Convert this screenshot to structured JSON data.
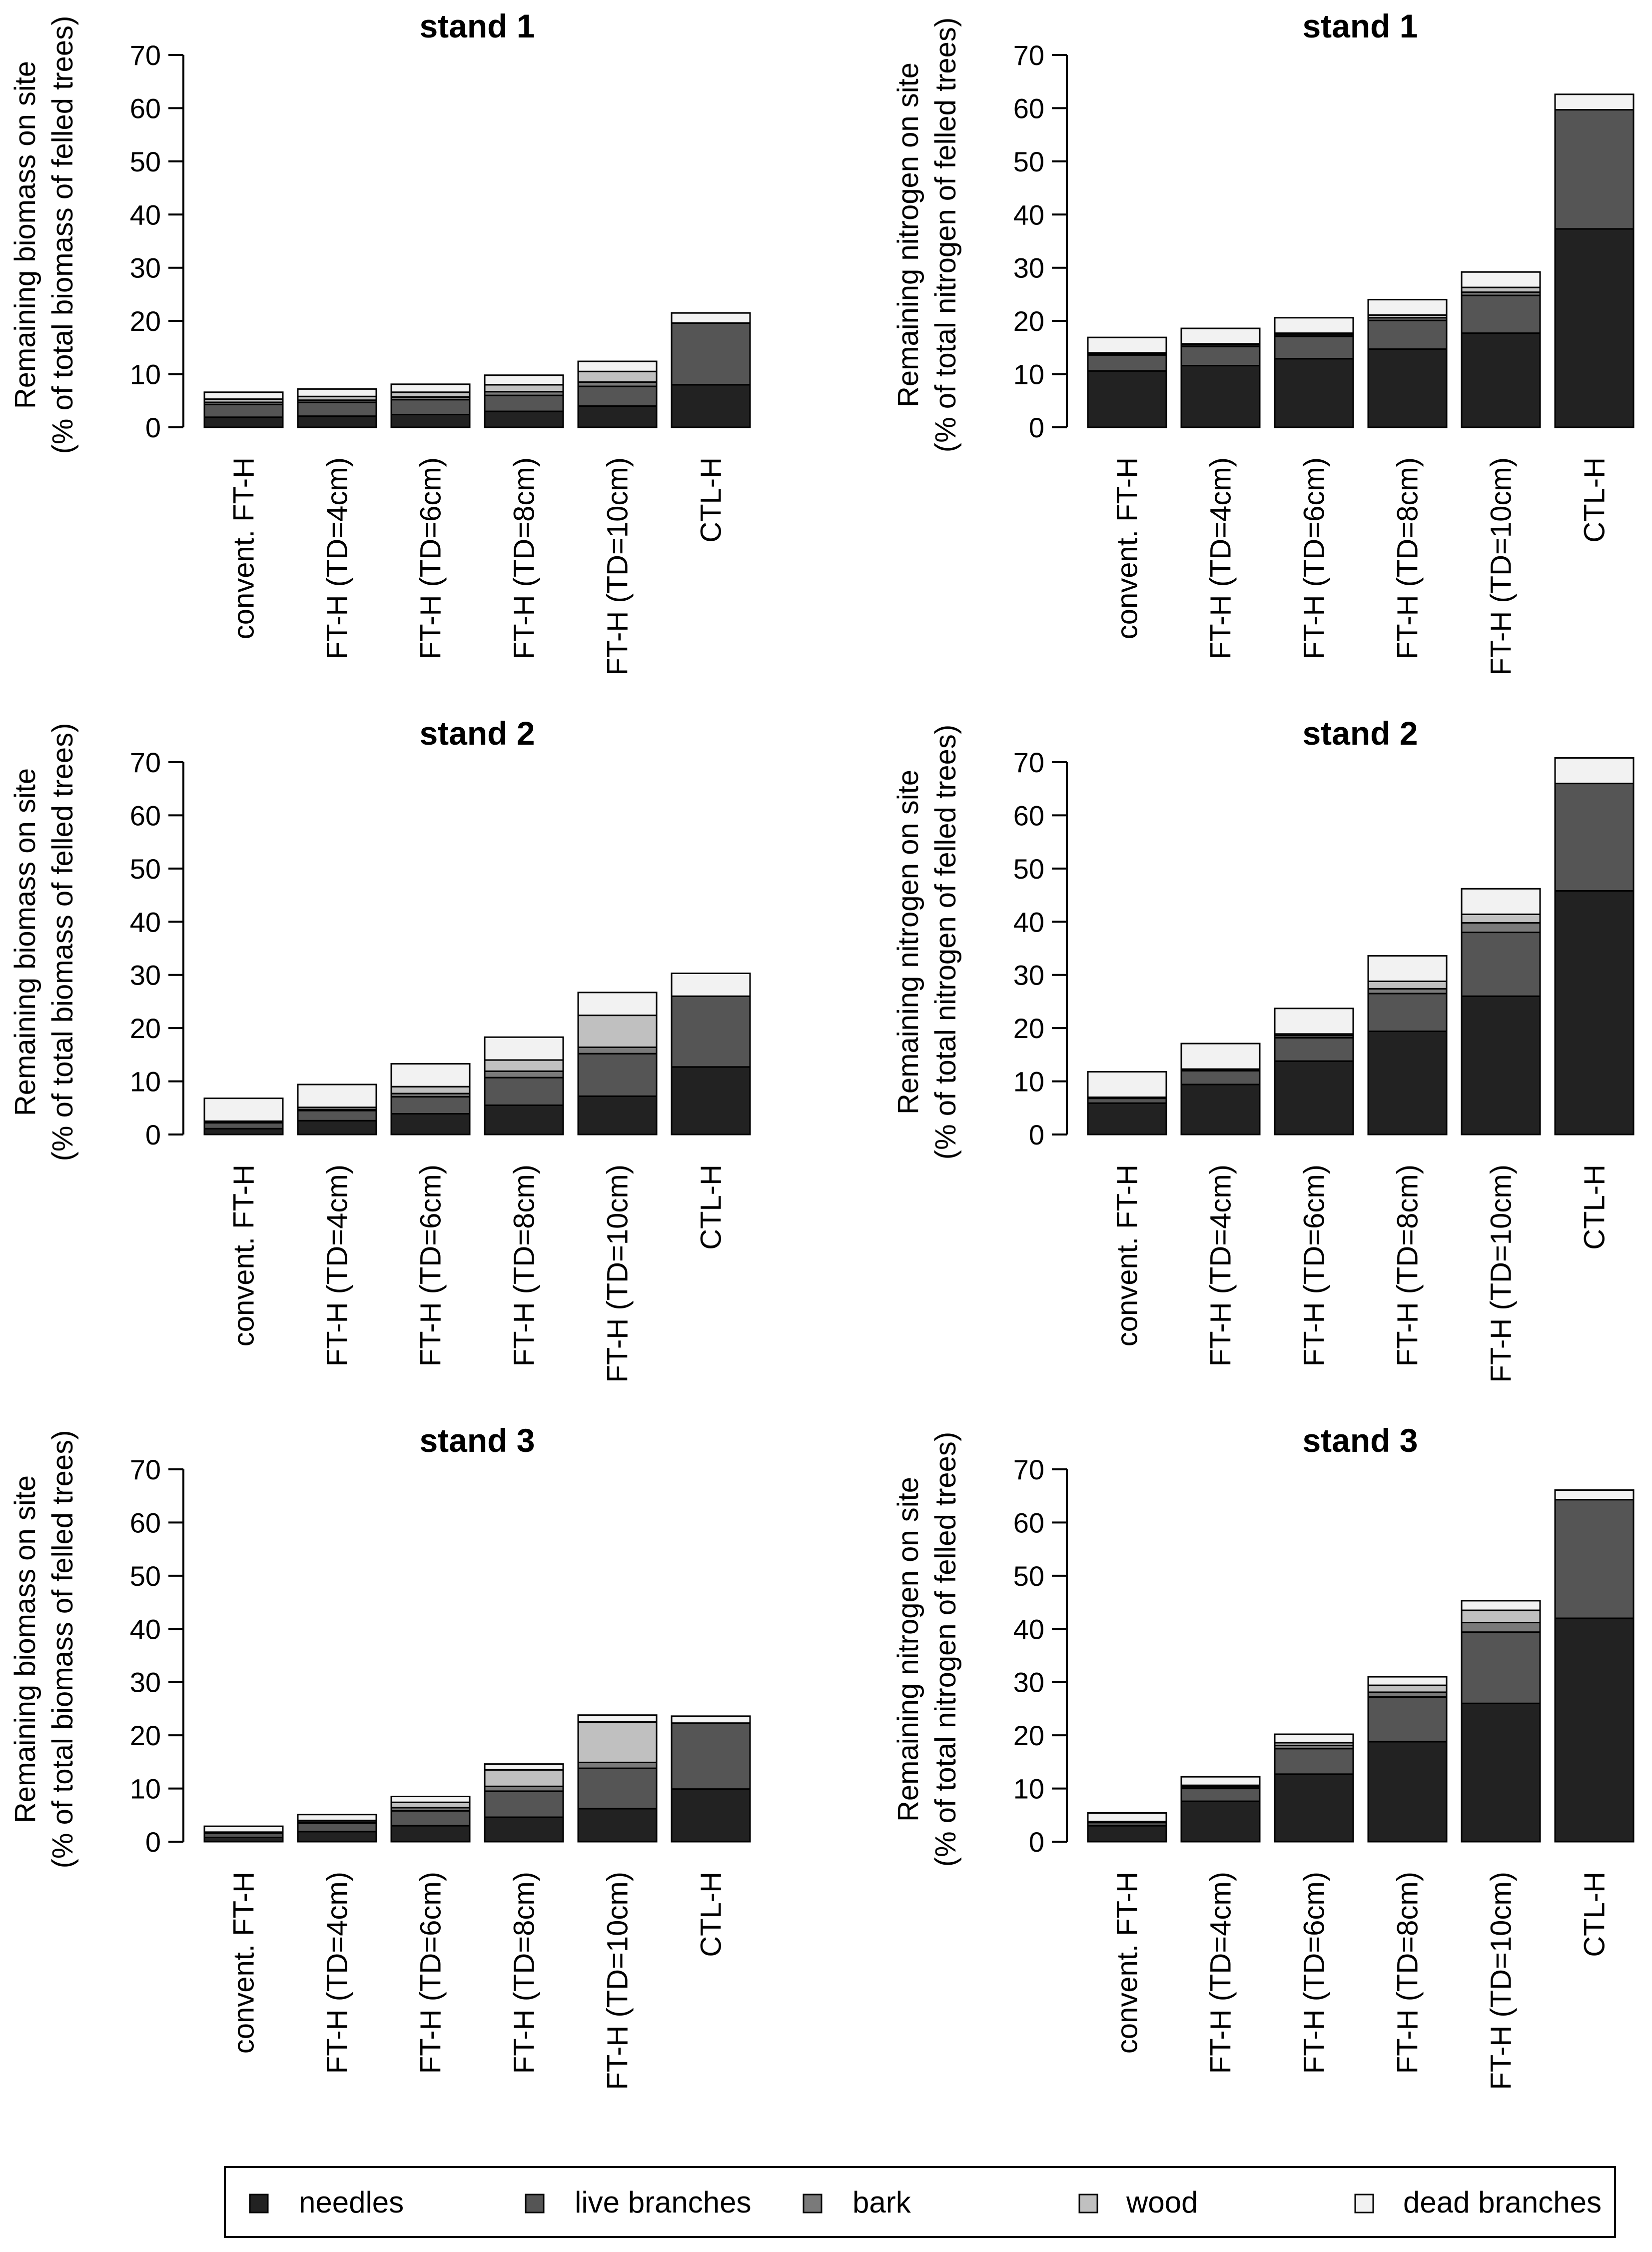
{
  "colors": {
    "needles": "#222222",
    "live_branches": "#555555",
    "bark": "#7a7a7a",
    "wood": "#c0c0c0",
    "dead_branches": "#f2f2f2"
  },
  "legend": [
    {
      "key": "needles",
      "label": "needles"
    },
    {
      "key": "live_branches",
      "label": "live branches"
    },
    {
      "key": "bark",
      "label": "bark"
    },
    {
      "key": "wood",
      "label": "wood"
    },
    {
      "key": "dead_branches",
      "label": "dead branches"
    }
  ],
  "chart_data": [
    {
      "id": "stand1-biomass",
      "type": "bar",
      "stacked": true,
      "title": "stand 1",
      "ylabel_line1": "Remaining biomass on site",
      "ylabel_line2": "(% of total biomass of felled trees)",
      "ylim": [
        0,
        70
      ],
      "yticks": [
        0,
        10,
        20,
        30,
        40,
        50,
        60,
        70
      ],
      "categories": [
        "convent. FT-H",
        "FT-H (TD=4cm)",
        "FT-H (TD=6cm)",
        "FT-H (TD=8cm)",
        "FT-H (TD=10cm)",
        "CTL-H"
      ],
      "series": [
        {
          "name": "needles",
          "values": [
            1.9,
            2.1,
            2.4,
            3.0,
            4.0,
            8.0
          ]
        },
        {
          "name": "live branches",
          "values": [
            2.4,
            2.6,
            2.8,
            3.0,
            3.7,
            11.6
          ]
        },
        {
          "name": "bark",
          "values": [
            0.4,
            0.4,
            0.5,
            0.7,
            0.8,
            0.0
          ]
        },
        {
          "name": "wood",
          "values": [
            0.6,
            0.7,
            0.9,
            1.3,
            2.0,
            0.0
          ]
        },
        {
          "name": "dead branches",
          "values": [
            1.3,
            1.4,
            1.5,
            1.8,
            1.9,
            1.9
          ]
        }
      ]
    },
    {
      "id": "stand1-nitrogen",
      "type": "bar",
      "stacked": true,
      "title": "stand 1",
      "ylabel_line1": "Remaining nitrogen on site",
      "ylabel_line2": "(% of total nitrogen of felled trees)",
      "ylim": [
        0,
        70
      ],
      "yticks": [
        0,
        10,
        20,
        30,
        40,
        50,
        60,
        70
      ],
      "categories": [
        "convent. FT-H",
        "FT-H (TD=4cm)",
        "FT-H (TD=6cm)",
        "FT-H (TD=8cm)",
        "FT-H (TD=10cm)",
        "CTL-H"
      ],
      "series": [
        {
          "name": "needles",
          "values": [
            10.6,
            11.6,
            12.9,
            14.7,
            17.7,
            37.3
          ]
        },
        {
          "name": "live branches",
          "values": [
            3.0,
            3.6,
            4.2,
            5.4,
            7.1,
            22.4
          ]
        },
        {
          "name": "bark",
          "values": [
            0.2,
            0.3,
            0.3,
            0.5,
            0.6,
            0.0
          ]
        },
        {
          "name": "wood",
          "values": [
            0.2,
            0.2,
            0.3,
            0.5,
            0.9,
            0.0
          ]
        },
        {
          "name": "dead branches",
          "values": [
            2.9,
            2.9,
            2.9,
            2.9,
            2.9,
            2.9
          ]
        }
      ]
    },
    {
      "id": "stand2-biomass",
      "type": "bar",
      "stacked": true,
      "title": "stand 2",
      "ylabel_line1": "Remaining biomass on site",
      "ylabel_line2": "(% of total biomass of felled trees)",
      "ylim": [
        0,
        70
      ],
      "yticks": [
        0,
        10,
        20,
        30,
        40,
        50,
        60,
        70
      ],
      "categories": [
        "convent. FT-H",
        "FT-H (TD=4cm)",
        "FT-H (TD=6cm)",
        "FT-H (TD=8cm)",
        "FT-H (TD=10cm)",
        "CTL-H"
      ],
      "series": [
        {
          "name": "needles",
          "values": [
            1.1,
            2.6,
            3.9,
            5.5,
            7.2,
            12.7
          ]
        },
        {
          "name": "live branches",
          "values": [
            1.1,
            1.9,
            3.2,
            5.2,
            8.0,
            13.3
          ]
        },
        {
          "name": "bark",
          "values": [
            0.1,
            0.2,
            0.6,
            1.2,
            1.2,
            0.0
          ]
        },
        {
          "name": "wood",
          "values": [
            0.2,
            0.4,
            1.3,
            2.1,
            6.0,
            0.0
          ]
        },
        {
          "name": "dead branches",
          "values": [
            4.3,
            4.3,
            4.3,
            4.3,
            4.3,
            4.3
          ]
        }
      ]
    },
    {
      "id": "stand2-nitrogen",
      "type": "bar",
      "stacked": true,
      "title": "stand 2",
      "ylabel_line1": "Remaining nitrogen on site",
      "ylabel_line2": "(% of total nitrogen of felled trees)",
      "ylim": [
        0,
        70
      ],
      "yticks": [
        0,
        10,
        20,
        30,
        40,
        50,
        60,
        70
      ],
      "categories": [
        "convent. FT-H",
        "FT-H (TD=4cm)",
        "FT-H (TD=6cm)",
        "FT-H (TD=8cm)",
        "FT-H (TD=10cm)",
        "CTL-H"
      ],
      "series": [
        {
          "name": "needles",
          "values": [
            5.9,
            9.4,
            13.8,
            19.4,
            26.0,
            45.8
          ]
        },
        {
          "name": "live branches",
          "values": [
            0.9,
            2.6,
            4.4,
            7.1,
            12.0,
            20.2
          ]
        },
        {
          "name": "bark",
          "values": [
            0.1,
            0.2,
            0.4,
            0.9,
            1.8,
            0.0
          ]
        },
        {
          "name": "wood",
          "values": [
            0.1,
            0.1,
            0.3,
            1.4,
            1.6,
            0.0
          ]
        },
        {
          "name": "dead branches",
          "values": [
            4.8,
            4.8,
            4.8,
            4.8,
            4.8,
            4.8
          ]
        }
      ]
    },
    {
      "id": "stand3-biomass",
      "type": "bar",
      "stacked": true,
      "title": "stand 3",
      "ylabel_line1": "Remaining biomass on site",
      "ylabel_line2": "(% of total biomass of felled trees)",
      "ylim": [
        0,
        70
      ],
      "yticks": [
        0,
        10,
        20,
        30,
        40,
        50,
        60,
        70
      ],
      "categories": [
        "convent. FT-H",
        "FT-H (TD=4cm)",
        "FT-H (TD=6cm)",
        "FT-H (TD=8cm)",
        "FT-H (TD=10cm)",
        "CTL-H"
      ],
      "series": [
        {
          "name": "needles",
          "values": [
            0.8,
            1.9,
            3.0,
            4.6,
            6.2,
            9.9
          ]
        },
        {
          "name": "live branches",
          "values": [
            0.8,
            1.6,
            2.8,
            4.9,
            7.6,
            12.4
          ]
        },
        {
          "name": "bark",
          "values": [
            0.1,
            0.2,
            0.6,
            0.9,
            1.1,
            0.0
          ]
        },
        {
          "name": "wood",
          "values": [
            0.1,
            0.3,
            1.0,
            3.1,
            7.6,
            0.0
          ]
        },
        {
          "name": "dead branches",
          "values": [
            1.1,
            1.1,
            1.1,
            1.1,
            1.3,
            1.3
          ]
        }
      ]
    },
    {
      "id": "stand3-nitrogen",
      "type": "bar",
      "stacked": true,
      "title": "stand 3",
      "ylabel_line1": "Remaining nitrogen on site",
      "ylabel_line2": "(% of total nitrogen of felled trees)",
      "ylim": [
        0,
        70
      ],
      "yticks": [
        0,
        10,
        20,
        30,
        40,
        50,
        60,
        70
      ],
      "categories": [
        "convent. FT-H",
        "FT-H (TD=4cm)",
        "FT-H (TD=6cm)",
        "FT-H (TD=8cm)",
        "FT-H (TD=10cm)",
        "CTL-H"
      ],
      "series": [
        {
          "name": "needles",
          "values": [
            3.0,
            7.6,
            12.7,
            18.8,
            26.0,
            42.0
          ]
        },
        {
          "name": "live branches",
          "values": [
            0.6,
            2.4,
            4.8,
            8.4,
            13.4,
            22.3
          ]
        },
        {
          "name": "bark",
          "values": [
            0.1,
            0.3,
            0.6,
            0.9,
            1.8,
            0.0
          ]
        },
        {
          "name": "wood",
          "values": [
            0.1,
            0.3,
            0.5,
            1.3,
            2.3,
            0.0
          ]
        },
        {
          "name": "dead branches",
          "values": [
            1.6,
            1.6,
            1.6,
            1.6,
            1.8,
            1.8
          ]
        }
      ]
    }
  ]
}
